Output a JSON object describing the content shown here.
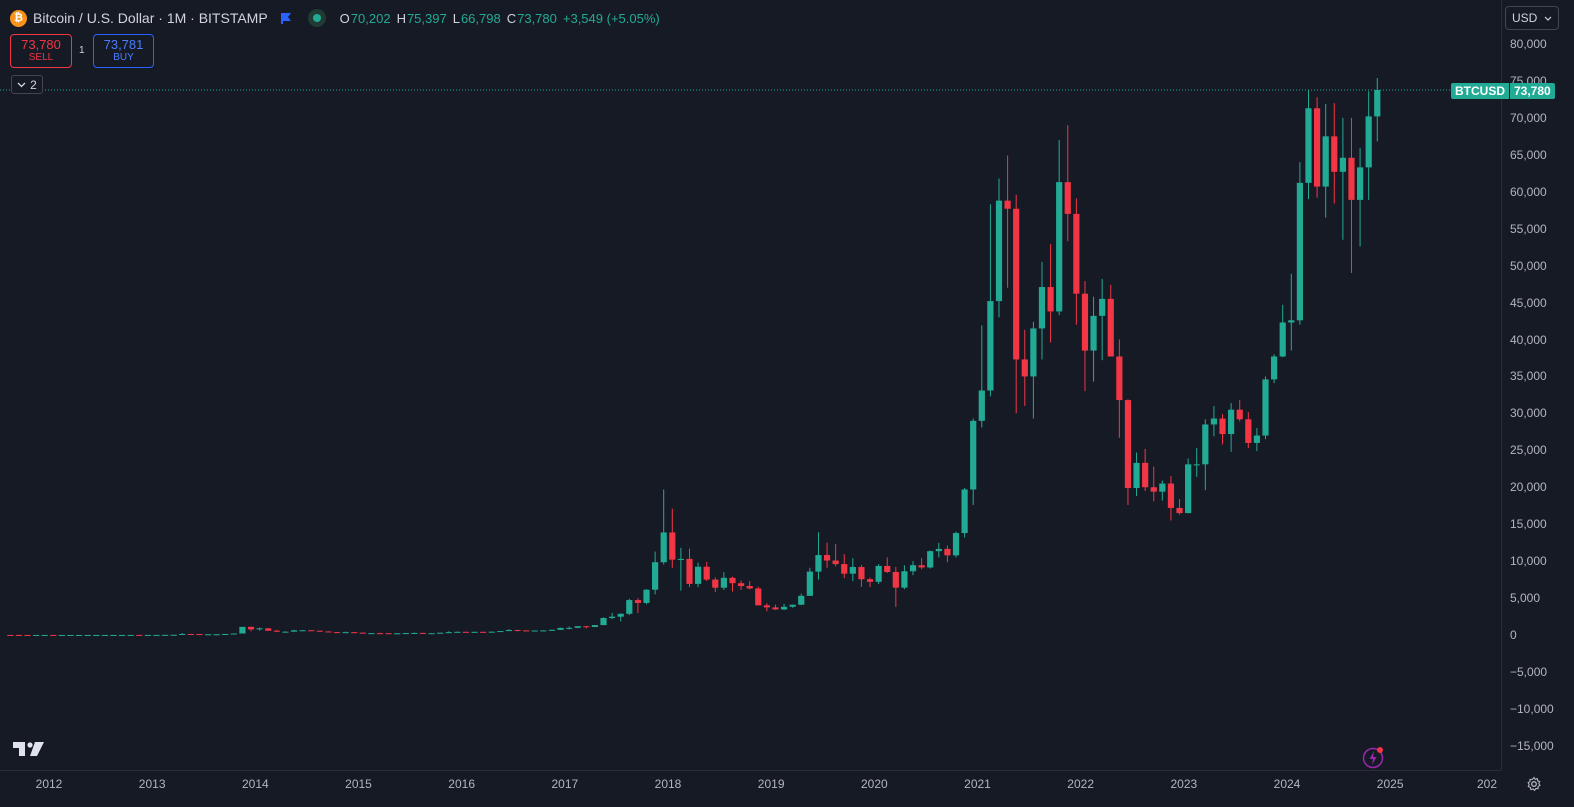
{
  "header": {
    "coin_icon": "bitcoin-icon",
    "symbol_title": "Bitcoin / U.S. Dollar · 1M · BITSTAMP",
    "flag_icon": "flag-icon",
    "status_icon": "market-open-dot-icon",
    "ohlc": {
      "open_label": "O",
      "open": "70,202",
      "high_label": "H",
      "high": "75,397",
      "low_label": "L",
      "low": "66,798",
      "close_label": "C",
      "close": "73,780",
      "change": "+3,549 (+5.05%)"
    }
  },
  "trade": {
    "sell_price": "73,780",
    "sell_label": "SELL",
    "buy_price": "73,781",
    "buy_label": "BUY",
    "spread": "1"
  },
  "indicators_toggle": {
    "count": "2",
    "icon": "chevron-down-icon"
  },
  "axis": {
    "currency": "USD",
    "currency_icon": "chevron-down-icon",
    "settings_icon": "gear-icon"
  },
  "price_tag": {
    "symbol": "BTCUSD",
    "value": "73,780"
  },
  "footer": {
    "logo_icon": "tradingview-logo-icon",
    "alert_icon": "lightning-icon"
  },
  "colors": {
    "up": "#22ab94",
    "down": "#f23645",
    "background": "#161a25"
  },
  "chart_data": {
    "type": "candlestick",
    "title": "Bitcoin / U.S. Dollar · 1M · BITSTAMP",
    "ylim": [
      -17500,
      82500
    ],
    "y_ticks": [
      "80,000",
      "75,000",
      "70,000",
      "65,000",
      "60,000",
      "55,000",
      "50,000",
      "45,000",
      "40,000",
      "35,000",
      "30,000",
      "25,000",
      "20,000",
      "15,000",
      "10,000",
      "5,000",
      "0",
      "−5,000",
      "−10,000",
      "−15,000"
    ],
    "x_ticks": [
      "2012",
      "2013",
      "2014",
      "2015",
      "2016",
      "2017",
      "2018",
      "2019",
      "2020",
      "2021",
      "2022",
      "2023",
      "2024",
      "2025",
      "202"
    ],
    "x_range": [
      "2011-08",
      "2026-01"
    ],
    "last_price": 73780,
    "candles_start": "2011-08",
    "candles": [
      [
        10,
        11,
        9,
        9
      ],
      [
        9,
        9,
        2,
        5
      ],
      [
        5,
        5,
        3,
        3
      ],
      [
        3,
        4,
        2,
        4
      ],
      [
        4,
        7,
        4,
        6
      ],
      [
        6,
        7,
        5,
        5
      ],
      [
        5,
        6,
        4,
        5
      ],
      [
        5,
        5,
        4,
        5
      ],
      [
        5,
        6,
        5,
        5
      ],
      [
        5,
        5,
        5,
        5
      ],
      [
        5,
        7,
        5,
        7
      ],
      [
        7,
        9,
        7,
        9
      ],
      [
        9,
        16,
        8,
        10
      ],
      [
        10,
        11,
        9,
        10
      ],
      [
        10,
        14,
        10,
        12
      ],
      [
        12,
        13,
        10,
        11
      ],
      [
        11,
        13,
        11,
        12
      ],
      [
        12,
        14,
        12,
        14
      ],
      [
        14,
        20,
        13,
        20
      ],
      [
        20,
        34,
        20,
        34
      ],
      [
        34,
        266,
        50,
        140
      ],
      [
        140,
        150,
        70,
        130
      ],
      [
        130,
        130,
        80,
        100
      ],
      [
        100,
        100,
        65,
        100
      ],
      [
        100,
        110,
        70,
        100
      ],
      [
        100,
        145,
        100,
        140
      ],
      [
        140,
        200,
        100,
        200
      ],
      [
        200,
        1100,
        200,
        1100
      ],
      [
        1100,
        1150,
        500,
        760
      ],
      [
        760,
        1000,
        600,
        900
      ],
      [
        900,
        950,
        550,
        580
      ],
      [
        580,
        700,
        400,
        450
      ],
      [
        450,
        500,
        360,
        450
      ],
      [
        450,
        700,
        430,
        630
      ],
      [
        630,
        680,
        550,
        640
      ],
      [
        640,
        650,
        560,
        580
      ],
      [
        580,
        600,
        460,
        480
      ],
      [
        480,
        500,
        380,
        390
      ],
      [
        390,
        400,
        300,
        340
      ],
      [
        340,
        460,
        320,
        380
      ],
      [
        380,
        380,
        290,
        320
      ],
      [
        320,
        320,
        170,
        220
      ],
      [
        220,
        270,
        210,
        250
      ],
      [
        250,
        300,
        240,
        240
      ],
      [
        240,
        260,
        220,
        230
      ],
      [
        230,
        250,
        220,
        230
      ],
      [
        230,
        270,
        220,
        260
      ],
      [
        260,
        320,
        250,
        280
      ],
      [
        280,
        290,
        200,
        230
      ],
      [
        230,
        250,
        220,
        240
      ],
      [
        240,
        320,
        230,
        310
      ],
      [
        310,
        500,
        310,
        380
      ],
      [
        380,
        470,
        320,
        430
      ],
      [
        430,
        460,
        350,
        370
      ],
      [
        370,
        440,
        360,
        430
      ],
      [
        430,
        440,
        390,
        420
      ],
      [
        420,
        460,
        410,
        450
      ],
      [
        450,
        550,
        440,
        530
      ],
      [
        530,
        780,
        530,
        680
      ],
      [
        680,
        700,
        470,
        620
      ],
      [
        620,
        630,
        480,
        570
      ],
      [
        570,
        610,
        560,
        610
      ],
      [
        610,
        640,
        600,
        620
      ],
      [
        620,
        750,
        600,
        700
      ],
      [
        700,
        980,
        700,
        960
      ],
      [
        960,
        1150,
        750,
        970
      ],
      [
        970,
        1200,
        920,
        1190
      ],
      [
        1190,
        1200,
        890,
        1080
      ],
      [
        1080,
        1340,
        1070,
        1340
      ],
      [
        1340,
        2400,
        1330,
        2300
      ],
      [
        2300,
        3000,
        2150,
        2480
      ],
      [
        2480,
        2900,
        1840,
        2870
      ],
      [
        2870,
        4900,
        2700,
        4730
      ],
      [
        4730,
        5000,
        2970,
        4340
      ],
      [
        4340,
        6200,
        4160,
        6130
      ],
      [
        6130,
        11300,
        5500,
        9850
      ],
      [
        9850,
        19700,
        9550,
        13880
      ],
      [
        13880,
        17100,
        9100,
        10200
      ],
      [
        10200,
        11800,
        6000,
        10300
      ],
      [
        10300,
        11700,
        6500,
        6920
      ],
      [
        6920,
        9800,
        6500,
        9240
      ],
      [
        9240,
        9900,
        7300,
        7500
      ],
      [
        7500,
        7800,
        5800,
        6400
      ],
      [
        6400,
        8500,
        6100,
        7740
      ],
      [
        7740,
        7900,
        5880,
        7010
      ],
      [
        7010,
        7400,
        6100,
        6630
      ],
      [
        6630,
        7300,
        6200,
        6300
      ],
      [
        6300,
        6550,
        4000,
        4020
      ],
      [
        4020,
        4300,
        3200,
        3740
      ],
      [
        3740,
        4100,
        3400,
        3460
      ],
      [
        3460,
        4200,
        3370,
        3820
      ],
      [
        3820,
        4100,
        3700,
        4100
      ],
      [
        4100,
        5600,
        4050,
        5300
      ],
      [
        5300,
        9100,
        5300,
        8580
      ],
      [
        8580,
        13900,
        7500,
        10820
      ],
      [
        10820,
        12500,
        9100,
        10080
      ],
      [
        10080,
        12300,
        9300,
        9600
      ],
      [
        9600,
        10950,
        7700,
        8300
      ],
      [
        8300,
        10400,
        7300,
        9200
      ],
      [
        9200,
        9500,
        6500,
        7550
      ],
      [
        7550,
        7750,
        6500,
        7200
      ],
      [
        7200,
        9600,
        6900,
        9350
      ],
      [
        9350,
        10500,
        8400,
        8530
      ],
      [
        8530,
        9200,
        3800,
        6410
      ],
      [
        6410,
        9450,
        6200,
        8630
      ],
      [
        8630,
        10000,
        8100,
        9450
      ],
      [
        9450,
        10400,
        8900,
        9140
      ],
      [
        9140,
        11450,
        9000,
        11350
      ],
      [
        11350,
        12480,
        10500,
        11650
      ],
      [
        11650,
        12100,
        9850,
        10780
      ],
      [
        10780,
        14000,
        10500,
        13800
      ],
      [
        13800,
        19900,
        13200,
        19700
      ],
      [
        19700,
        29300,
        17600,
        28990
      ],
      [
        28990,
        41900,
        28100,
        33100
      ],
      [
        33100,
        58300,
        32300,
        45200
      ],
      [
        45200,
        61800,
        43000,
        58800
      ],
      [
        58800,
        64900,
        47000,
        57700
      ],
      [
        57700,
        59600,
        30000,
        37300
      ],
      [
        37300,
        41300,
        31000,
        35000
      ],
      [
        35000,
        42400,
        29300,
        41500
      ],
      [
        41500,
        50500,
        37300,
        47100
      ],
      [
        47100,
        52900,
        39600,
        43800
      ],
      [
        43800,
        67000,
        43300,
        61300
      ],
      [
        61300,
        69000,
        53300,
        57000
      ],
      [
        57000,
        59100,
        42000,
        46200
      ],
      [
        46200,
        47900,
        33000,
        38500
      ],
      [
        38500,
        45800,
        34300,
        43200
      ],
      [
        43200,
        48200,
        37200,
        45500
      ],
      [
        45500,
        47400,
        37700,
        37700
      ],
      [
        37700,
        40000,
        26700,
        31800
      ],
      [
        31800,
        31900,
        17600,
        19900
      ],
      [
        19900,
        24700,
        18800,
        23300
      ],
      [
        23300,
        25200,
        19500,
        20000
      ],
      [
        20000,
        22800,
        18100,
        19400
      ],
      [
        19400,
        20900,
        18200,
        20500
      ],
      [
        20500,
        21500,
        15500,
        17200
      ],
      [
        17200,
        18400,
        16300,
        16500
      ],
      [
        16500,
        23900,
        16500,
        23100
      ],
      [
        23100,
        25300,
        21400,
        23100
      ],
      [
        23100,
        29200,
        19600,
        28500
      ],
      [
        28500,
        31000,
        26900,
        29300
      ],
      [
        29300,
        29900,
        25800,
        27200
      ],
      [
        27200,
        31400,
        24800,
        30500
      ],
      [
        30500,
        31800,
        28900,
        29200
      ],
      [
        29200,
        30200,
        25300,
        26000
      ],
      [
        26000,
        28000,
        24900,
        27000
      ],
      [
        27000,
        35000,
        26500,
        34600
      ],
      [
        34600,
        38000,
        34100,
        37700
      ],
      [
        37700,
        44700,
        37600,
        42300
      ],
      [
        42300,
        48900,
        38500,
        42600
      ],
      [
        42600,
        64000,
        42000,
        61200
      ],
      [
        61200,
        73800,
        59000,
        71300
      ],
      [
        71300,
        72800,
        59200,
        60700
      ],
      [
        60700,
        71900,
        56500,
        67500
      ],
      [
        67500,
        72000,
        58400,
        62700
      ],
      [
        62700,
        70000,
        53500,
        64600
      ],
      [
        64600,
        70000,
        49000,
        58900
      ],
      [
        58900,
        65900,
        52600,
        63300
      ],
      [
        63300,
        73600,
        58900,
        70200
      ],
      [
        70202,
        75397,
        66798,
        73780
      ]
    ]
  }
}
